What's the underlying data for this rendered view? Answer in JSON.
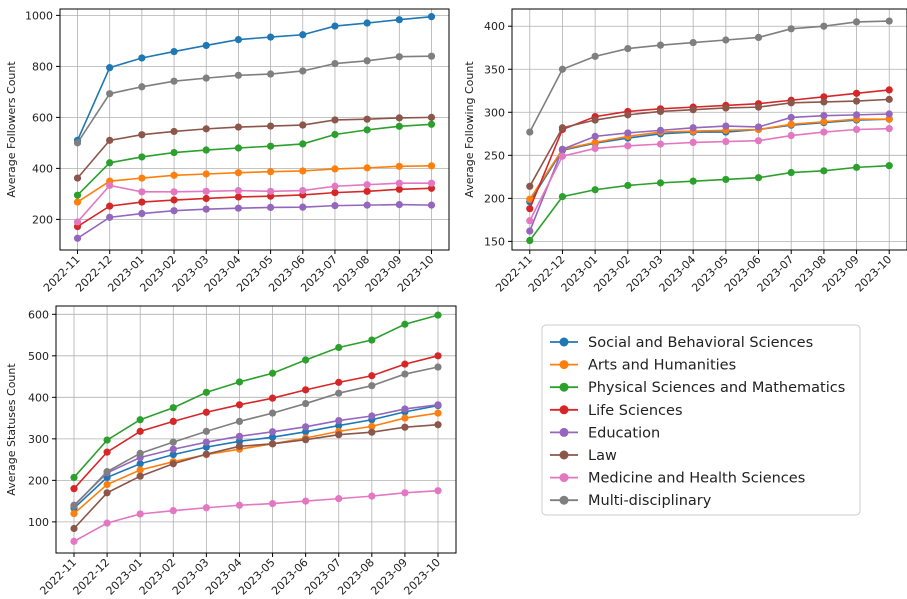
{
  "months": [
    "2022-11",
    "2022-12",
    "2023-01",
    "2023-02",
    "2023-03",
    "2023-04",
    "2023-05",
    "2023-06",
    "2023-07",
    "2023-08",
    "2023-09",
    "2023-10"
  ],
  "legend": [
    {
      "name": "Social and Behavioral Sciences",
      "color": "#1f77b4"
    },
    {
      "name": "Arts and Humanities",
      "color": "#ff7f0e"
    },
    {
      "name": "Physical Sciences and Mathematics",
      "color": "#2ca02c"
    },
    {
      "name": "Life Sciences",
      "color": "#d62728"
    },
    {
      "name": "Education",
      "color": "#9467bd"
    },
    {
      "name": "Law",
      "color": "#8c564b"
    },
    {
      "name": "Medicine and Health Sciences",
      "color": "#e377c2"
    },
    {
      "name": "Multi-disciplinary",
      "color": "#7f7f7f"
    }
  ],
  "chart_data": [
    {
      "type": "line",
      "ylabel": "Average Followers Count",
      "xlabel": "",
      "ylim": [
        80,
        1025
      ],
      "yticks": [
        200,
        400,
        600,
        800,
        1000
      ],
      "grid": true,
      "series": [
        {
          "name": "Social and Behavioral Sciences",
          "values": [
            510,
            795,
            833,
            858,
            882,
            905,
            915,
            924,
            958,
            970,
            983,
            995
          ]
        },
        {
          "name": "Arts and Humanities",
          "values": [
            268,
            350,
            362,
            373,
            378,
            383,
            387,
            390,
            398,
            402,
            408,
            410
          ]
        },
        {
          "name": "Physical Sciences and Mathematics",
          "values": [
            295,
            422,
            445,
            462,
            472,
            480,
            487,
            496,
            533,
            551,
            565,
            573
          ]
        },
        {
          "name": "Life Sciences",
          "values": [
            172,
            252,
            268,
            276,
            282,
            288,
            291,
            296,
            305,
            310,
            318,
            322
          ]
        },
        {
          "name": "Education",
          "values": [
            126,
            208,
            223,
            234,
            240,
            244,
            247,
            248,
            254,
            256,
            258,
            256
          ]
        },
        {
          "name": "Law",
          "values": [
            362,
            510,
            532,
            545,
            555,
            562,
            566,
            570,
            590,
            593,
            598,
            600
          ]
        },
        {
          "name": "Medicine and Health Sciences",
          "values": [
            190,
            333,
            308,
            308,
            310,
            313,
            310,
            313,
            330,
            336,
            342,
            342
          ]
        },
        {
          "name": "Multi-disciplinary",
          "values": [
            500,
            693,
            720,
            742,
            754,
            765,
            770,
            782,
            811,
            822,
            838,
            840
          ]
        }
      ]
    },
    {
      "type": "line",
      "ylabel": "Average Following Count",
      "xlabel": "",
      "ylim": [
        140,
        420
      ],
      "yticks": [
        150,
        200,
        250,
        300,
        350,
        400
      ],
      "grid": true,
      "series": [
        {
          "name": "Social and Behavioral Sciences",
          "values": [
            196,
            256,
            264,
            270,
            275,
            277,
            277,
            280,
            285,
            288,
            291,
            292
          ]
        },
        {
          "name": "Arts and Humanities",
          "values": [
            199,
            257,
            265,
            272,
            277,
            278,
            279,
            280,
            286,
            289,
            292,
            292
          ]
        },
        {
          "name": "Physical Sciences and Mathematics",
          "values": [
            151,
            202,
            210,
            215,
            218,
            220,
            222,
            224,
            230,
            232,
            236,
            238
          ]
        },
        {
          "name": "Life Sciences",
          "values": [
            188,
            280,
            295,
            301,
            304,
            306,
            308,
            310,
            314,
            318,
            322,
            326
          ]
        },
        {
          "name": "Education",
          "values": [
            162,
            257,
            272,
            276,
            279,
            282,
            284,
            283,
            294,
            296,
            297,
            298
          ]
        },
        {
          "name": "Law",
          "values": [
            214,
            282,
            291,
            297,
            301,
            303,
            305,
            306,
            311,
            312,
            313,
            315
          ]
        },
        {
          "name": "Medicine and Health Sciences",
          "values": [
            174,
            249,
            258,
            261,
            263,
            265,
            266,
            267,
            273,
            277,
            280,
            281
          ]
        },
        {
          "name": "Multi-disciplinary",
          "values": [
            277,
            350,
            365,
            374,
            378,
            381,
            384,
            387,
            397,
            400,
            405,
            406
          ]
        }
      ]
    },
    {
      "type": "line",
      "ylabel": "Average Statuses Count",
      "xlabel": "",
      "ylim": [
        25,
        620
      ],
      "yticks": [
        100,
        200,
        300,
        400,
        500,
        600
      ],
      "grid": true,
      "series": [
        {
          "name": "Social and Behavioral Sciences",
          "values": [
            133,
            207,
            240,
            262,
            280,
            294,
            304,
            317,
            332,
            346,
            365,
            380
          ]
        },
        {
          "name": "Arts and Humanities",
          "values": [
            120,
            190,
            225,
            245,
            262,
            275,
            288,
            302,
            318,
            330,
            350,
            362
          ]
        },
        {
          "name": "Physical Sciences and Mathematics",
          "values": [
            207,
            297,
            346,
            375,
            412,
            437,
            458,
            490,
            520,
            538,
            576,
            598
          ]
        },
        {
          "name": "Life Sciences",
          "values": [
            180,
            268,
            318,
            342,
            364,
            382,
            398,
            418,
            436,
            452,
            480,
            500
          ]
        },
        {
          "name": "Education",
          "values": [
            140,
            218,
            255,
            275,
            292,
            306,
            317,
            329,
            344,
            355,
            372,
            382
          ]
        },
        {
          "name": "Law",
          "values": [
            84,
            170,
            210,
            240,
            263,
            282,
            288,
            298,
            310,
            316,
            328,
            334
          ]
        },
        {
          "name": "Medicine and Health Sciences",
          "values": [
            53,
            97,
            119,
            127,
            134,
            140,
            144,
            150,
            156,
            162,
            170,
            175
          ]
        },
        {
          "name": "Multi-disciplinary",
          "values": [
            138,
            221,
            265,
            292,
            318,
            342,
            362,
            385,
            410,
            428,
            456,
            473
          ]
        }
      ]
    }
  ]
}
